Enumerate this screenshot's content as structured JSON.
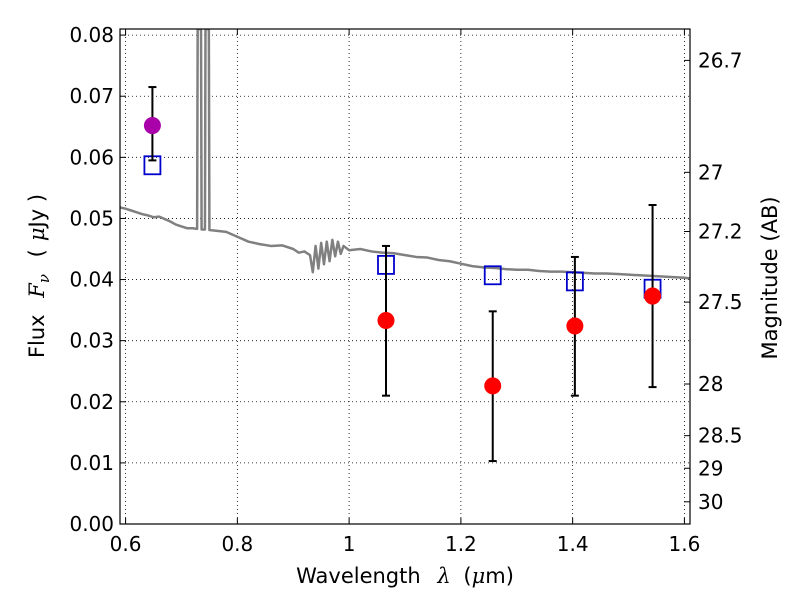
{
  "chart_data": {
    "type": "scatter",
    "xlim": [
      0.59,
      1.61
    ],
    "ylim": [
      0.0,
      0.081
    ],
    "grid": true,
    "grid_style": "dotted",
    "xlabel": {
      "prefix": "Wavelength",
      "symbol": "λ",
      "unit_open": "(",
      "unit_mu": "μ",
      "unit_rest": "m)"
    },
    "ylabel": {
      "prefix": "Flux",
      "symbol": "F",
      "subscript": "ν",
      "unit_open": "(",
      "unit_mu": "μ",
      "unit_rest": "Jy )"
    },
    "y2label": "Magnitude (AB)",
    "x_ticks": [
      {
        "value": 0.6,
        "label": "0.6"
      },
      {
        "value": 0.8,
        "label": "0.8"
      },
      {
        "value": 1.0,
        "label": "1"
      },
      {
        "value": 1.2,
        "label": "1.2"
      },
      {
        "value": 1.4,
        "label": "1.4"
      },
      {
        "value": 1.6,
        "label": "1.6"
      }
    ],
    "y_ticks": [
      {
        "value": 0.0,
        "label": "0.00"
      },
      {
        "value": 0.01,
        "label": "0.01"
      },
      {
        "value": 0.02,
        "label": "0.02"
      },
      {
        "value": 0.03,
        "label": "0.03"
      },
      {
        "value": 0.04,
        "label": "0.04"
      },
      {
        "value": 0.05,
        "label": "0.05"
      },
      {
        "value": 0.06,
        "label": "0.06"
      },
      {
        "value": 0.07,
        "label": "0.07"
      },
      {
        "value": 0.08,
        "label": "0.08"
      }
    ],
    "y2_ticks": [
      {
        "value": 26.7,
        "label": "26.7"
      },
      {
        "value": 27.0,
        "label": "27"
      },
      {
        "value": 27.2,
        "label": "27.2"
      },
      {
        "value": 27.5,
        "label": "27.5"
      },
      {
        "value": 28.0,
        "label": "28"
      },
      {
        "value": 28.5,
        "label": "28.5"
      },
      {
        "value": 29.0,
        "label": "29"
      },
      {
        "value": 30.0,
        "label": "30"
      }
    ],
    "series": [
      {
        "kind": "spectrum_line",
        "color": "#808080",
        "points": [
          [
            0.59,
            0.0518
          ],
          [
            0.6,
            0.0516
          ],
          [
            0.61,
            0.0513
          ],
          [
            0.62,
            0.051
          ],
          [
            0.63,
            0.0507
          ],
          [
            0.64,
            0.0505
          ],
          [
            0.65,
            0.0502
          ],
          [
            0.66,
            0.0503
          ],
          [
            0.67,
            0.0499
          ],
          [
            0.68,
            0.0495
          ],
          [
            0.69,
            0.049
          ],
          [
            0.7,
            0.0487
          ],
          [
            0.71,
            0.0484
          ],
          [
            0.72,
            0.0484
          ],
          [
            0.728,
            0.0483
          ],
          [
            0.729,
            0.081
          ],
          [
            0.735,
            0.081
          ],
          [
            0.736,
            0.0482
          ],
          [
            0.742,
            0.0482
          ],
          [
            0.743,
            0.081
          ],
          [
            0.749,
            0.081
          ],
          [
            0.75,
            0.0481
          ],
          [
            0.76,
            0.048
          ],
          [
            0.78,
            0.0478
          ],
          [
            0.8,
            0.047
          ],
          [
            0.82,
            0.0462
          ],
          [
            0.84,
            0.0458
          ],
          [
            0.86,
            0.0455
          ],
          [
            0.88,
            0.0456
          ],
          [
            0.9,
            0.045
          ],
          [
            0.91,
            0.0444
          ],
          [
            0.92,
            0.0446
          ],
          [
            0.93,
            0.044
          ],
          [
            0.935,
            0.0412
          ],
          [
            0.94,
            0.0455
          ],
          [
            0.945,
            0.0418
          ],
          [
            0.95,
            0.046
          ],
          [
            0.955,
            0.0425
          ],
          [
            0.96,
            0.0462
          ],
          [
            0.965,
            0.043
          ],
          [
            0.97,
            0.0465
          ],
          [
            0.975,
            0.0438
          ],
          [
            0.98,
            0.0462
          ],
          [
            0.985,
            0.0442
          ],
          [
            0.99,
            0.0455
          ],
          [
            1.0,
            0.0448
          ],
          [
            1.02,
            0.045
          ],
          [
            1.04,
            0.0446
          ],
          [
            1.06,
            0.0444
          ],
          [
            1.08,
            0.0443
          ],
          [
            1.1,
            0.044
          ],
          [
            1.12,
            0.0437
          ],
          [
            1.14,
            0.0436
          ],
          [
            1.16,
            0.0432
          ],
          [
            1.18,
            0.043
          ],
          [
            1.2,
            0.0426
          ],
          [
            1.22,
            0.0422
          ],
          [
            1.24,
            0.042
          ],
          [
            1.26,
            0.0419
          ],
          [
            1.28,
            0.0417
          ],
          [
            1.3,
            0.0416
          ],
          [
            1.32,
            0.0416
          ],
          [
            1.34,
            0.0414
          ],
          [
            1.36,
            0.0413
          ],
          [
            1.38,
            0.0413
          ],
          [
            1.4,
            0.0412
          ],
          [
            1.42,
            0.0411
          ],
          [
            1.44,
            0.041
          ],
          [
            1.46,
            0.041
          ],
          [
            1.48,
            0.0409
          ],
          [
            1.5,
            0.0408
          ],
          [
            1.52,
            0.0407
          ],
          [
            1.54,
            0.0406
          ],
          [
            1.56,
            0.0405
          ],
          [
            1.58,
            0.0404
          ],
          [
            1.6,
            0.0403
          ],
          [
            1.61,
            0.0402
          ]
        ]
      },
      {
        "kind": "model_squares",
        "color": "#0000cc",
        "points": [
          {
            "x": 0.648,
            "y": 0.0587
          },
          {
            "x": 1.066,
            "y": 0.0424
          },
          {
            "x": 1.257,
            "y": 0.0407
          },
          {
            "x": 1.404,
            "y": 0.0397
          },
          {
            "x": 1.543,
            "y": 0.0385
          }
        ]
      },
      {
        "kind": "observed_points",
        "points": [
          {
            "x": 0.648,
            "y": 0.0652,
            "err_low": 0.0595,
            "err_high": 0.0715,
            "color": "#aa00aa"
          },
          {
            "x": 1.066,
            "y": 0.0333,
            "err_low": 0.021,
            "err_high": 0.0455,
            "color": "#ff0000"
          },
          {
            "x": 1.257,
            "y": 0.0226,
            "err_low": 0.0103,
            "err_high": 0.0348,
            "color": "#ff0000"
          },
          {
            "x": 1.404,
            "y": 0.0324,
            "err_low": 0.021,
            "err_high": 0.0437,
            "color": "#ff0000"
          },
          {
            "x": 1.543,
            "y": 0.0373,
            "err_low": 0.0224,
            "err_high": 0.0522,
            "color": "#ff0000"
          }
        ]
      }
    ]
  }
}
